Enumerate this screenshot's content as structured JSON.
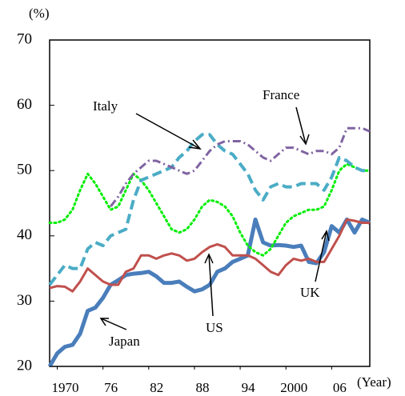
{
  "chart_data": {
    "type": "line",
    "y_label": "(%)",
    "x_label": "(Year)",
    "x": [
      1969,
      1970,
      1971,
      1972,
      1973,
      1974,
      1975,
      1976,
      1977,
      1978,
      1979,
      1980,
      1981,
      1982,
      1983,
      1984,
      1985,
      1986,
      1987,
      1988,
      1989,
      1990,
      1991,
      1992,
      1993,
      1994,
      1995,
      1996,
      1997,
      1998,
      1999,
      2000,
      2001,
      2002,
      2003,
      2004,
      2005,
      2006,
      2007,
      2008,
      2009,
      2010,
      2011
    ],
    "xlim": [
      1969,
      2011
    ],
    "xticks": [
      1970,
      {
        "value": 1976,
        "label": "76"
      },
      {
        "value": 1982,
        "label": "82"
      },
      {
        "value": 1988,
        "label": "88"
      },
      {
        "value": 1994,
        "label": "94"
      },
      2000,
      {
        "value": 2006,
        "label": "06"
      }
    ],
    "ylim": [
      20,
      70
    ],
    "yticks": [
      20,
      30,
      40,
      50,
      60,
      70
    ],
    "grid": false,
    "series": [
      {
        "name": "Japan",
        "color": "#4a7ebb",
        "style": "solid",
        "width": 5,
        "values": [
          20,
          22,
          23,
          23.3,
          25,
          28.5,
          29,
          30.5,
          32.5,
          33.2,
          34,
          34.2,
          34.3,
          34.5,
          33.8,
          32.8,
          32.8,
          33,
          32.2,
          31.5,
          31.8,
          32.5,
          34.5,
          35,
          36,
          36.5,
          37,
          42.5,
          39,
          38.5,
          38.6,
          38.5,
          38.3,
          38.5,
          36,
          35.8,
          37.5,
          41.5,
          40.5,
          42.5,
          40.5,
          42.5,
          42
        ]
      },
      {
        "name": "US",
        "color": "#c0504d",
        "style": "solid",
        "width": 3,
        "values": [
          32,
          32.3,
          32.2,
          31.5,
          33,
          35,
          34,
          33,
          32.5,
          32.5,
          34.5,
          35,
          37,
          37,
          36.5,
          37,
          37.3,
          37,
          36.2,
          36.5,
          37.5,
          38.3,
          38.7,
          38.3,
          37,
          37,
          37,
          36.5,
          35.5,
          34.5,
          34,
          35.5,
          36.5,
          36.2,
          36.5,
          36,
          36,
          38,
          40,
          42.5,
          42.3,
          42,
          42
        ]
      },
      {
        "name": "UK",
        "color": "#00ee00",
        "style": "dot",
        "width": 3,
        "values": [
          42,
          42,
          42.5,
          44,
          47,
          49.5,
          48,
          46,
          44,
          44.5,
          47,
          49.5,
          48.5,
          47,
          45,
          43,
          41,
          40.5,
          41,
          42.5,
          44.5,
          45.5,
          45.2,
          44.5,
          43,
          40.5,
          38.5,
          37.5,
          37,
          38,
          40,
          42,
          43,
          43.5,
          44,
          44,
          44.5,
          47,
          50,
          51,
          50.5,
          50,
          50
        ]
      },
      {
        "name": "Italy",
        "color": "#4bacc6",
        "style": "dash",
        "width": 4,
        "values": [
          32.5,
          34,
          35.5,
          35,
          35,
          38,
          39,
          38.5,
          40,
          40.5,
          41,
          45.5,
          48.5,
          49,
          49.5,
          50,
          50.5,
          52,
          53,
          54.5,
          55.5,
          55.5,
          54,
          53,
          52.5,
          51,
          49.5,
          47,
          45.5,
          47.5,
          48,
          47.5,
          47.5,
          48,
          48,
          48,
          47,
          49,
          52,
          51.5,
          50.5,
          50,
          50
        ]
      },
      {
        "name": "France",
        "color": "#8064a2",
        "style": "dashdot",
        "width": 3,
        "values": [
          null,
          null,
          null,
          null,
          null,
          null,
          null,
          null,
          44.5,
          46,
          48,
          49.5,
          50.5,
          51.5,
          51.5,
          51,
          50.5,
          50,
          49.5,
          50,
          51.5,
          53,
          54,
          54.5,
          54.5,
          54.5,
          54,
          53,
          52,
          51.5,
          52.5,
          53.5,
          53.5,
          53,
          52.5,
          53,
          53,
          52.5,
          53.5,
          56.5,
          56.5,
          56.5,
          56
        ]
      }
    ]
  }
}
